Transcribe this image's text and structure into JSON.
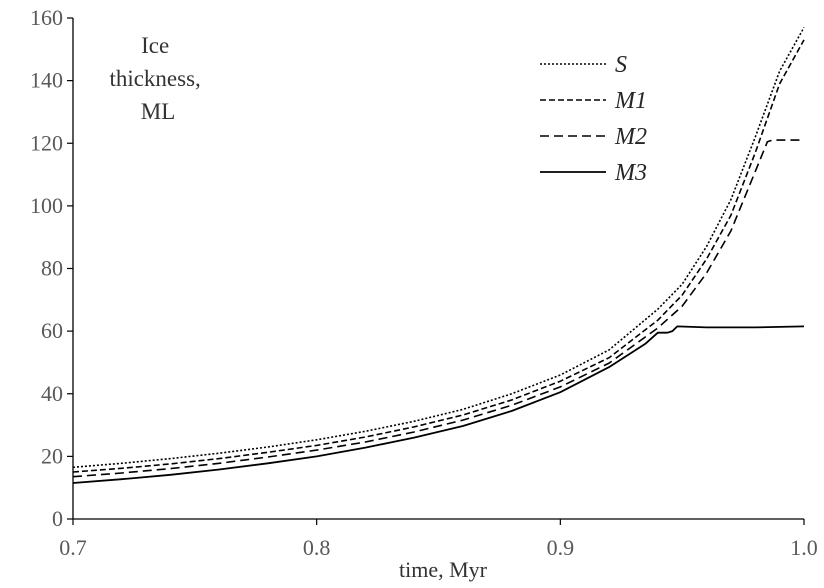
{
  "chart_data": {
    "type": "line",
    "xlabel": "time, Myr",
    "ylabel_lines": [
      "Ice",
      "thickness,",
      "ML"
    ],
    "xlim": [
      0.7,
      1.0
    ],
    "ylim": [
      0,
      160
    ],
    "x_ticks": [
      0.7,
      0.8,
      0.9,
      1.0
    ],
    "x_tick_labels": [
      "0.7",
      "0.8",
      "0.9",
      "1.0"
    ],
    "y_ticks": [
      0,
      20,
      40,
      60,
      80,
      100,
      120,
      140,
      160
    ],
    "y_tick_labels": [
      "0",
      "20",
      "40",
      "60",
      "80",
      "100",
      "120",
      "140",
      "160"
    ],
    "grid": false,
    "legend_position": "top-right",
    "series": [
      {
        "name": "S",
        "style": "dotted",
        "x": [
          0.7,
          0.72,
          0.74,
          0.76,
          0.78,
          0.8,
          0.82,
          0.84,
          0.86,
          0.88,
          0.9,
          0.92,
          0.94,
          0.95,
          0.96,
          0.97,
          0.98,
          0.99,
          1.0
        ],
        "y": [
          16.5,
          17.8,
          19.3,
          21.0,
          23.0,
          25.3,
          28.0,
          31.2,
          35.0,
          40.0,
          46.0,
          54.0,
          67.0,
          75.0,
          87.0,
          102.0,
          122.0,
          143.0,
          157.0
        ]
      },
      {
        "name": "M1",
        "style": "short-dash",
        "x": [
          0.7,
          0.72,
          0.74,
          0.76,
          0.78,
          0.8,
          0.82,
          0.84,
          0.86,
          0.88,
          0.9,
          0.92,
          0.94,
          0.95,
          0.96,
          0.97,
          0.98,
          0.99,
          1.0
        ],
        "y": [
          15.0,
          16.2,
          17.6,
          19.3,
          21.3,
          23.5,
          26.2,
          29.4,
          33.2,
          38.0,
          44.0,
          51.5,
          63.5,
          71.5,
          83.0,
          97.0,
          117.0,
          139.0,
          153.0
        ]
      },
      {
        "name": "M2",
        "style": "long-dash",
        "x": [
          0.7,
          0.72,
          0.74,
          0.76,
          0.78,
          0.8,
          0.82,
          0.84,
          0.86,
          0.88,
          0.9,
          0.92,
          0.94,
          0.95,
          0.96,
          0.97,
          0.98,
          0.985,
          0.987,
          1.0
        ],
        "y": [
          13.5,
          14.7,
          16.1,
          17.8,
          19.8,
          22.0,
          24.6,
          27.8,
          31.6,
          36.3,
          42.2,
          49.8,
          61.0,
          68.0,
          78.5,
          92.0,
          111.0,
          120.5,
          121.0,
          121.0
        ]
      },
      {
        "name": "M3",
        "style": "solid",
        "x": [
          0.7,
          0.72,
          0.74,
          0.76,
          0.78,
          0.8,
          0.82,
          0.84,
          0.86,
          0.88,
          0.9,
          0.92,
          0.935,
          0.94,
          0.944,
          0.946,
          0.948,
          0.96,
          0.98,
          1.0
        ],
        "y": [
          11.5,
          12.7,
          14.1,
          15.8,
          17.8,
          20.0,
          22.8,
          26.0,
          29.7,
          34.5,
          40.5,
          48.5,
          56.0,
          59.5,
          59.5,
          60.0,
          61.5,
          61.2,
          61.2,
          61.5
        ]
      }
    ]
  }
}
